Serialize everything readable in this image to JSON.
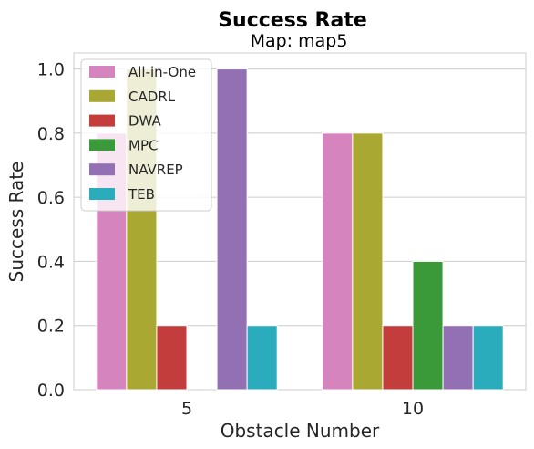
{
  "chart_data": {
    "type": "bar",
    "title": "Success Rate",
    "subtitle": "Map: map5",
    "xlabel": "Obstacle Number",
    "ylabel": "Success Rate",
    "categories": [
      "5",
      "10"
    ],
    "ylim": [
      0.0,
      1.05
    ],
    "yticks": [
      0.0,
      0.2,
      0.4,
      0.6,
      0.8,
      1.0
    ],
    "ytick_labels": [
      "0.0",
      "0.2",
      "0.4",
      "0.6",
      "0.8",
      "1.0"
    ],
    "grid": true,
    "legend_position": "top-left",
    "series": [
      {
        "name": "All-in-One",
        "color": "#d684bd",
        "values": [
          0.8,
          0.8
        ]
      },
      {
        "name": "CADRL",
        "color": "#a8a832",
        "values": [
          1.0,
          0.8
        ]
      },
      {
        "name": "DWA",
        "color": "#c33d3d",
        "values": [
          0.2,
          0.2
        ]
      },
      {
        "name": "MPC",
        "color": "#3a9a3a",
        "values": [
          0.0,
          0.4
        ]
      },
      {
        "name": "NAVREP",
        "color": "#9370b4",
        "values": [
          1.0,
          0.2
        ]
      },
      {
        "name": "TEB",
        "color": "#2bacbc",
        "values": [
          0.2,
          0.2
        ]
      }
    ]
  }
}
